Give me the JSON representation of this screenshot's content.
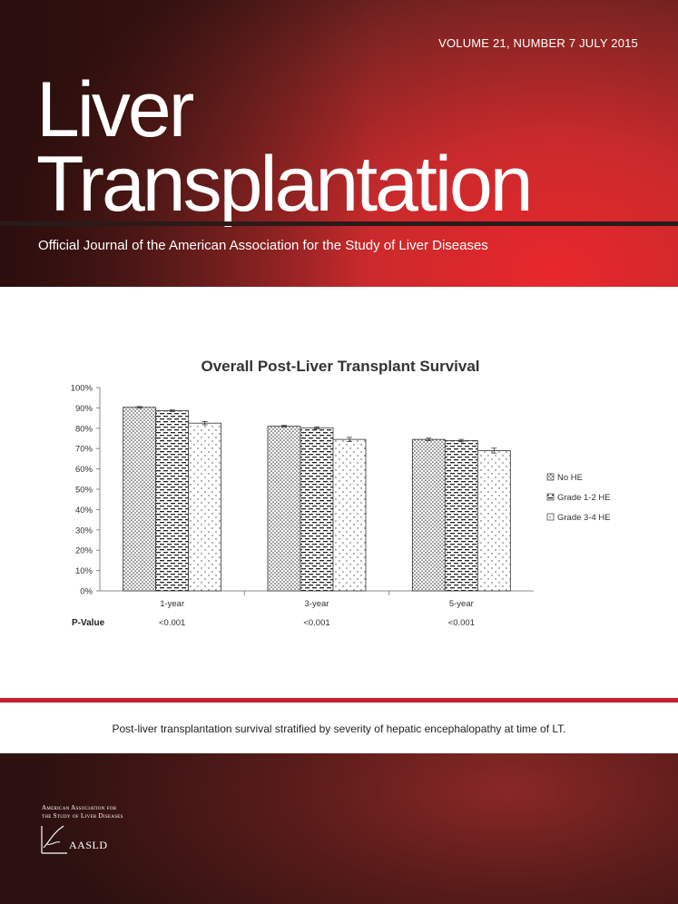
{
  "issue": "VOLUME 21, NUMBER 7   JULY 2015",
  "title_line1": "Liver",
  "title_line2": "Transplantation",
  "subtitle": "Official Journal of the American Association for the Study of Liver Diseases",
  "caption": "Post-liver transplantation survival stratified by severity of hepatic encephalopathy at time of LT.",
  "logo": {
    "line1": "American Association for",
    "line2": "the Study of Liver Diseases",
    "name": "AASLD"
  },
  "chart_data": {
    "type": "bar",
    "title": "Overall Post-Liver Transplant Survival",
    "categories": [
      "1-year",
      "3-year",
      "5-year"
    ],
    "series": [
      {
        "name": "No HE",
        "values": [
          90.3,
          81.0,
          74.5
        ],
        "errors": [
          0.4,
          0.4,
          0.6
        ]
      },
      {
        "name": "Grade 1-2 HE",
        "values": [
          88.6,
          80.2,
          73.9
        ],
        "errors": [
          0.4,
          0.5,
          0.6
        ]
      },
      {
        "name": "Grade 3-4 HE",
        "values": [
          82.5,
          74.5,
          69.0
        ],
        "errors": [
          0.8,
          1.0,
          1.2
        ]
      }
    ],
    "ylim": [
      0,
      100
    ],
    "yticks": [
      "0%",
      "10%",
      "20%",
      "30%",
      "40%",
      "50%",
      "60%",
      "70%",
      "80%",
      "90%",
      "100%"
    ],
    "legend": "right",
    "pvalue_label": "P-Value",
    "pvalues": [
      "<0.001",
      "<0.001",
      "<0.001"
    ]
  }
}
